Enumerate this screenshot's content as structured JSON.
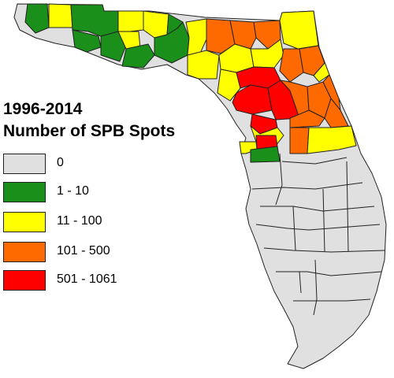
{
  "legend": {
    "title_line1": "1996-2014",
    "title_line2": "Number of SPB Spots",
    "classes": [
      {
        "label": "0",
        "color": "#e0e0e0"
      },
      {
        "label": "1 - 10",
        "color": "#1a8f1a"
      },
      {
        "label": "11 - 100",
        "color": "#ffff00"
      },
      {
        "label": "101 - 500",
        "color": "#ff6a00"
      },
      {
        "label": "501 - 1061",
        "color": "#ff0000"
      }
    ]
  }
}
